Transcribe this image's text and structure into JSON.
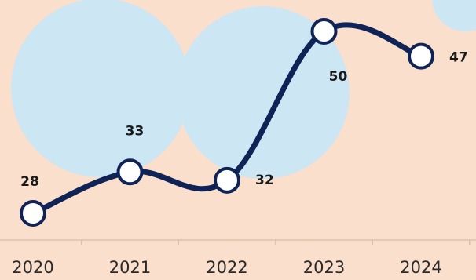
{
  "chart_data": {
    "type": "line",
    "categories": [
      "2020",
      "2021",
      "2022",
      "2023",
      "2024"
    ],
    "series": [
      {
        "color": "#0f2356",
        "values": [
          28,
          33,
          32,
          50,
          47
        ]
      }
    ]
  }
}
